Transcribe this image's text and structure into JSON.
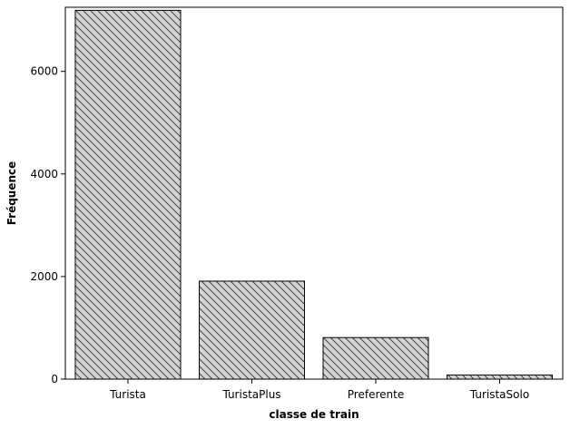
{
  "chart_data": {
    "type": "bar",
    "categories": [
      "Turista",
      "TuristaPlus",
      "Preferente",
      "TuristaSolo"
    ],
    "values": [
      7190,
      1910,
      810,
      80
    ],
    "xlabel": "classe de train",
    "ylabel": "Fréquence",
    "ylim": [
      0,
      7250
    ],
    "yticks": [
      0,
      2000,
      4000,
      6000
    ],
    "grid": false,
    "bar_fill": "#d3d3d3",
    "bar_stroke": "#000000",
    "bar_pattern": "diagonal-hatch"
  }
}
